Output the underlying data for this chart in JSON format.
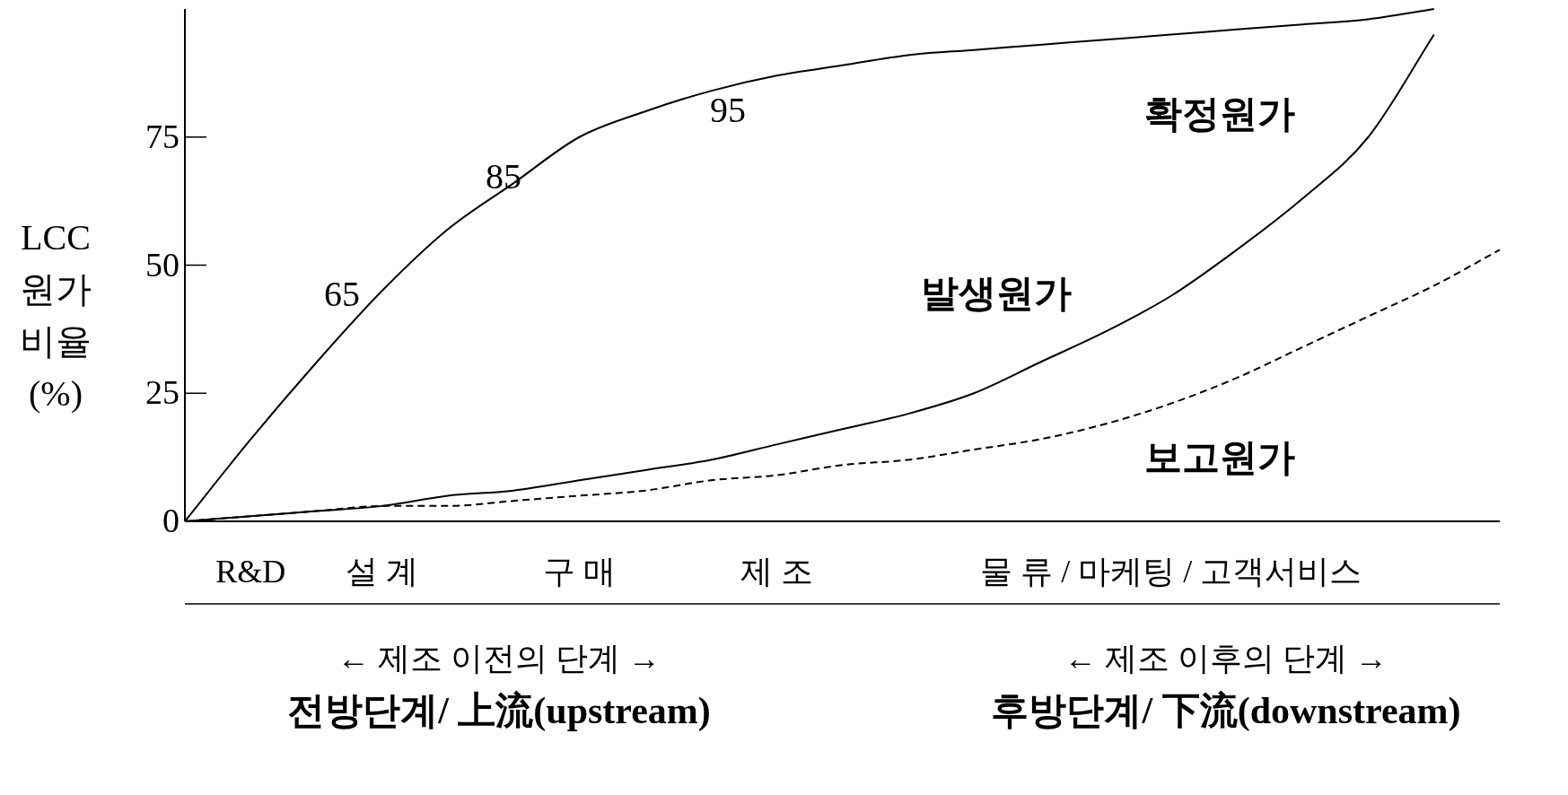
{
  "chart_data": {
    "type": "line",
    "ylabel": "LCC 원가 비율 (%)",
    "categories": [
      null,
      "R&D",
      null,
      "설 계",
      null,
      null,
      "구 매",
      null,
      null,
      "제 조",
      null,
      null,
      null,
      null,
      null,
      "물 류 / 마케팅 / 고객서비스",
      null,
      null,
      null,
      null,
      null
    ],
    "ylim": [
      0,
      100
    ],
    "yticks": [
      0,
      25,
      50,
      75
    ],
    "marker": "none",
    "series": [
      {
        "name": "확정원가",
        "color": "#000000",
        "line_style": "solid",
        "values": [
          0,
          16,
          31,
          45,
          57,
          66,
          75,
          80,
          84,
          87,
          89,
          91,
          92,
          93,
          94,
          95,
          96,
          97,
          98,
          100,
          null
        ]
      },
      {
        "name": "발생원가",
        "color": "#000000",
        "line_style": "solid",
        "values": [
          0,
          1,
          2,
          3,
          5,
          6,
          8,
          10,
          12,
          15,
          18,
          21,
          25,
          31,
          37,
          44,
          53,
          63,
          75,
          95,
          null
        ]
      },
      {
        "name": "보고원가",
        "color": "#000000",
        "line_style": "dashed",
        "values": [
          0,
          1,
          2,
          3,
          3,
          4,
          5,
          6,
          8,
          9,
          11,
          12,
          14,
          16,
          19,
          23,
          28,
          34,
          40,
          46,
          53
        ]
      }
    ],
    "annotations": [
      "65",
      "85",
      "95",
      "← 제조 이전의 단계 →",
      "전방단계/ 上流(upstream)",
      "← 제조 이후의 단계 →",
      "후방단계/ 下流(downstream)"
    ]
  }
}
